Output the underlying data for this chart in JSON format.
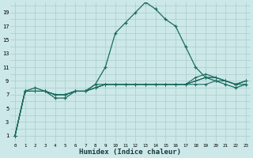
{
  "xlabel": "Humidex (Indice chaleur)",
  "ylabel": "",
  "bg_color": "#cce8e8",
  "grid_color": "#aacccc",
  "line_color": "#1a6b60",
  "xlim": [
    -0.5,
    23.5
  ],
  "ylim": [
    0,
    20.5
  ],
  "xticks": [
    0,
    1,
    2,
    3,
    4,
    5,
    6,
    7,
    8,
    9,
    10,
    11,
    12,
    13,
    14,
    15,
    16,
    17,
    18,
    19,
    20,
    21,
    22,
    23
  ],
  "yticks": [
    1,
    3,
    5,
    7,
    9,
    11,
    13,
    15,
    17,
    19
  ],
  "x": [
    0,
    1,
    2,
    3,
    4,
    5,
    6,
    7,
    8,
    9,
    10,
    11,
    12,
    13,
    14,
    15,
    16,
    17,
    18,
    19,
    20,
    21,
    22,
    23
  ],
  "lines": [
    [
      1,
      7.5,
      8.0,
      7.5,
      6.5,
      6.5,
      7.5,
      7.5,
      8.5,
      11.0,
      16.0,
      17.5,
      19.0,
      20.5,
      19.5,
      18.0,
      17.0,
      14.0,
      11.0,
      9.5,
      9.0,
      8.5,
      8.0,
      8.5
    ],
    [
      1,
      7.5,
      7.5,
      7.5,
      7.0,
      7.0,
      7.5,
      7.5,
      8.0,
      8.5,
      8.5,
      8.5,
      8.5,
      8.5,
      8.5,
      8.5,
      8.5,
      8.5,
      8.5,
      8.5,
      9.0,
      9.0,
      8.5,
      8.5
    ],
    [
      1,
      7.5,
      7.5,
      7.5,
      7.0,
      7.0,
      7.5,
      7.5,
      8.0,
      8.5,
      8.5,
      8.5,
      8.5,
      8.5,
      8.5,
      8.5,
      8.5,
      8.5,
      9.0,
      9.5,
      9.5,
      9.0,
      8.5,
      9.0
    ],
    [
      1,
      7.5,
      7.5,
      7.5,
      7.0,
      7.0,
      7.5,
      7.5,
      8.0,
      8.5,
      8.5,
      8.5,
      8.5,
      8.5,
      8.5,
      8.5,
      8.5,
      8.5,
      9.0,
      9.5,
      9.5,
      9.0,
      8.5,
      9.0
    ],
    [
      1,
      7.5,
      7.5,
      7.5,
      7.0,
      7.0,
      7.5,
      7.5,
      8.5,
      8.5,
      8.5,
      8.5,
      8.5,
      8.5,
      8.5,
      8.5,
      8.5,
      8.5,
      9.5,
      10.0,
      9.5,
      9.0,
      8.5,
      9.0
    ]
  ]
}
